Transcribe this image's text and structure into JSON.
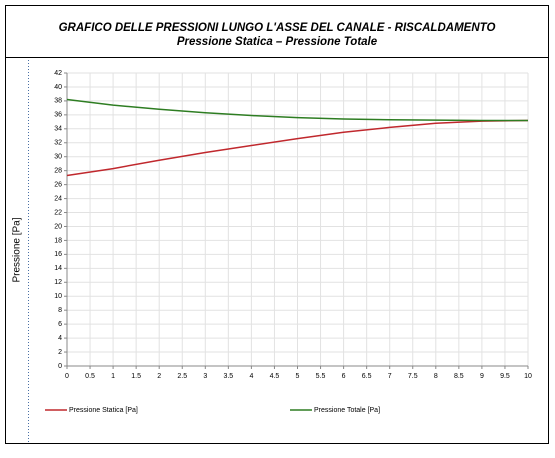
{
  "chart_data": {
    "type": "line",
    "title": "GRAFICO DELLE PRESSIONI LUNGO L'ASSE DEL CANALE - RISCALDAMENTO",
    "subtitle": "Pressione Statica – Pressione Totale",
    "ylabel": "Pressione [Pa]",
    "x": [
      0,
      1,
      2,
      3,
      4,
      5,
      6,
      7,
      8,
      9,
      10
    ],
    "series": [
      {
        "name": "Pressione Statica [Pa]",
        "color": "#c0282d",
        "values": [
          27.3,
          28.3,
          29.5,
          30.6,
          31.6,
          32.6,
          33.5,
          34.2,
          34.8,
          35.1,
          35.2
        ]
      },
      {
        "name": "Pressione Totale [Pa]",
        "color": "#2e7d22",
        "values": [
          38.2,
          37.4,
          36.8,
          36.3,
          35.9,
          35.6,
          35.4,
          35.3,
          35.25,
          35.2,
          35.2
        ]
      }
    ],
    "xlim": [
      0,
      10
    ],
    "ylim": [
      0,
      42
    ],
    "xticks": [
      0,
      0.5,
      1,
      1.5,
      2,
      2.5,
      3,
      3.5,
      4,
      4.5,
      5,
      5.5,
      6,
      6.5,
      7,
      7.5,
      8,
      8.5,
      9,
      9.5,
      10
    ],
    "yticks": [
      0,
      2,
      4,
      6,
      8,
      10,
      12,
      14,
      16,
      18,
      20,
      22,
      24,
      26,
      28,
      30,
      32,
      34,
      36,
      38,
      40,
      42
    ],
    "grid": true
  }
}
